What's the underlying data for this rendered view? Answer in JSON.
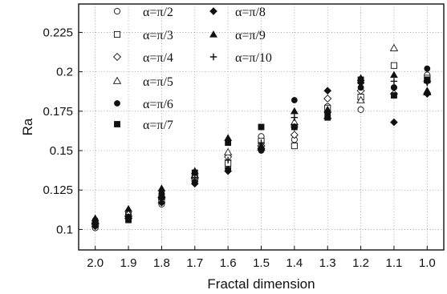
{
  "chart_data": {
    "type": "scatter",
    "title": "",
    "xlabel": "Fractal dimension",
    "ylabel": "Ra",
    "x_reversed": true,
    "xlim": [
      2.05,
      0.95
    ],
    "ylim": [
      0.087,
      0.243
    ],
    "x_ticks": [
      2.0,
      1.9,
      1.8,
      1.7,
      1.6,
      1.5,
      1.4,
      1.3,
      1.2,
      1.1,
      1.0
    ],
    "x_tick_labels": [
      "2.0",
      "1.9",
      "1.8",
      "1.7",
      "1.6",
      "1.5",
      "1.4",
      "1.3",
      "1.2",
      "1.1",
      "1.0"
    ],
    "y_ticks": [
      0.1,
      0.125,
      0.15,
      0.175,
      0.2,
      0.225
    ],
    "y_tick_labels": [
      "0.1",
      "0.125",
      "0.15",
      "0.175",
      "0.2",
      "0.225"
    ],
    "grid": true,
    "legend_position": "top-left",
    "series": [
      {
        "name": "α=π/2",
        "marker": "circle-open",
        "x": [
          2.0,
          1.9,
          1.8,
          1.7,
          1.6,
          1.5,
          1.4,
          1.3,
          1.2,
          1.1,
          1.0
        ],
        "y": [
          0.101,
          0.108,
          0.116,
          0.131,
          0.139,
          0.159,
          0.157,
          0.178,
          0.176,
          0.19,
          0.198
        ]
      },
      {
        "name": "α=π/3",
        "marker": "square-open",
        "x": [
          2.0,
          1.9,
          1.8,
          1.7,
          1.6,
          1.5,
          1.4,
          1.3,
          1.2,
          1.1,
          1.0
        ],
        "y": [
          0.103,
          0.109,
          0.118,
          0.132,
          0.142,
          0.156,
          0.153,
          0.177,
          0.184,
          0.204,
          0.196
        ]
      },
      {
        "name": "α=π/4",
        "marker": "diamond-open",
        "x": [
          2.0,
          1.9,
          1.8,
          1.7,
          1.6,
          1.5,
          1.4,
          1.3,
          1.2,
          1.1,
          1.0
        ],
        "y": [
          0.104,
          0.107,
          0.12,
          0.133,
          0.146,
          0.153,
          0.16,
          0.183,
          0.188,
          0.186,
          0.194
        ]
      },
      {
        "name": "α=π/5",
        "marker": "triangle-open",
        "x": [
          2.0,
          1.9,
          1.8,
          1.7,
          1.6,
          1.5,
          1.4,
          1.3,
          1.2,
          1.1,
          1.0
        ],
        "y": [
          0.105,
          0.11,
          0.122,
          0.134,
          0.149,
          0.152,
          0.168,
          0.172,
          0.182,
          0.215,
          0.187
        ]
      },
      {
        "name": "α=π/6",
        "marker": "circle-filled",
        "x": [
          2.0,
          1.9,
          1.8,
          1.7,
          1.6,
          1.5,
          1.4,
          1.3,
          1.2,
          1.1,
          1.0
        ],
        "y": [
          0.106,
          0.108,
          0.123,
          0.13,
          0.138,
          0.15,
          0.182,
          0.173,
          0.19,
          0.19,
          0.202
        ]
      },
      {
        "name": "α=π/7",
        "marker": "square-filled",
        "x": [
          2.0,
          1.9,
          1.8,
          1.7,
          1.6,
          1.5,
          1.4,
          1.3,
          1.2,
          1.1,
          1.0
        ],
        "y": [
          0.103,
          0.106,
          0.121,
          0.136,
          0.155,
          0.165,
          0.165,
          0.171,
          0.195,
          0.185,
          0.195
        ]
      },
      {
        "name": "α=π/8",
        "marker": "diamond-filled",
        "x": [
          2.0,
          1.9,
          1.8,
          1.7,
          1.6,
          1.5,
          1.4,
          1.3,
          1.2,
          1.1,
          1.0
        ],
        "y": [
          0.102,
          0.107,
          0.117,
          0.129,
          0.137,
          0.151,
          0.165,
          0.188,
          0.193,
          0.168,
          0.186
        ]
      },
      {
        "name": "α=π/9",
        "marker": "triangle-filled",
        "x": [
          2.0,
          1.9,
          1.8,
          1.7,
          1.6,
          1.5,
          1.4,
          1.3,
          1.2,
          1.1,
          1.0
        ],
        "y": [
          0.107,
          0.113,
          0.126,
          0.137,
          0.158,
          0.153,
          0.175,
          0.176,
          0.196,
          0.198,
          0.188
        ]
      },
      {
        "name": "α=π/10",
        "marker": "plus",
        "x": [
          2.0,
          1.9,
          1.8,
          1.7,
          1.6,
          1.5,
          1.4,
          1.3,
          1.2,
          1.1,
          1.0
        ],
        "y": [
          0.104,
          0.108,
          0.119,
          0.133,
          0.144,
          0.155,
          0.171,
          0.174,
          0.193,
          0.194,
          0.193
        ]
      }
    ]
  }
}
